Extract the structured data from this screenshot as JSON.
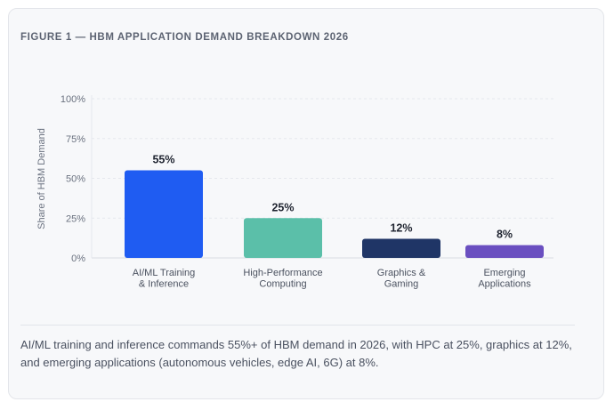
{
  "figure": {
    "title": "FIGURE 1 — HBM APPLICATION DEMAND BREAKDOWN 2026",
    "caption": "AI/ML training and inference commands 55%+ of HBM demand in 2026, with HPC at 25%, graphics at 12%, and emerging applications (autonomous vehicles, edge AI, 6G) at 8%."
  },
  "chart_data": {
    "type": "bar",
    "title": "FIGURE 1 — HBM APPLICATION DEMAND BREAKDOWN 2026",
    "xlabel": "",
    "ylabel": "Share of HBM Demand",
    "ylim": [
      0,
      100
    ],
    "yticks": [
      "0%",
      "25%",
      "50%",
      "75%",
      "100%"
    ],
    "grid": true,
    "categories": [
      [
        "AI/ML Training",
        "& Inference"
      ],
      [
        "High-Performance",
        "Computing"
      ],
      [
        "Graphics &",
        "Gaming"
      ],
      [
        "Emerging",
        "Applications"
      ]
    ],
    "values": [
      55,
      25,
      12,
      8
    ],
    "value_labels": [
      "55%",
      "25%",
      "12%",
      "8%"
    ],
    "colors": [
      "#1f5cf2",
      "#5bbfa9",
      "#1f3566",
      "#6a4fc0"
    ]
  }
}
